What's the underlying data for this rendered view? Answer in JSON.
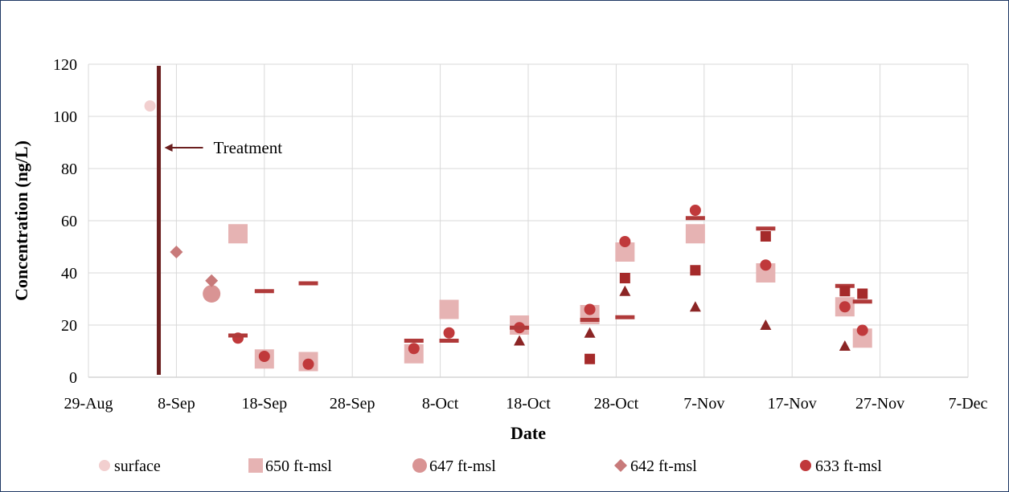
{
  "chart_data": {
    "type": "scatter",
    "title": "",
    "xlabel": "Date",
    "ylabel": "Concentration (ng/L)",
    "xlim": [
      "2023-08-29",
      "2023-12-07"
    ],
    "ylim": [
      0,
      120
    ],
    "yticks": [
      0,
      20,
      40,
      60,
      80,
      100,
      120
    ],
    "xticks": [
      "2023-08-29",
      "2023-09-08",
      "2023-09-18",
      "2023-09-28",
      "2023-10-08",
      "2023-10-18",
      "2023-10-28",
      "2023-11-07",
      "2023-11-17",
      "2023-11-27",
      "2023-12-07"
    ],
    "xtick_labels": [
      "29-Aug",
      "8-Sep",
      "18-Sep",
      "28-Sep",
      "8-Oct",
      "18-Oct",
      "28-Oct",
      "7-Nov",
      "17-Nov",
      "27-Nov",
      "7-Dec"
    ],
    "grid": true,
    "legend_position": "bottom",
    "legend": [
      "surface",
      "650 ft-msl",
      "647 ft-msl",
      "642 ft-msl",
      "633 ft-msl"
    ],
    "treatment": {
      "date": "2023-09-06",
      "label": "Treatment",
      "color": "#6b1f1f"
    },
    "series": [
      {
        "name": "surface",
        "marker": "circle",
        "color": "#f2cfcf",
        "points": [
          {
            "x": "2023-09-05",
            "y": 104
          }
        ]
      },
      {
        "name": "650 ft-msl",
        "marker": "square",
        "color": "#e6b3b3",
        "points": [
          {
            "x": "2023-09-15",
            "y": 55
          },
          {
            "x": "2023-09-18",
            "y": 7
          },
          {
            "x": "2023-09-23",
            "y": 6
          },
          {
            "x": "2023-10-05",
            "y": 9
          },
          {
            "x": "2023-10-09",
            "y": 26
          },
          {
            "x": "2023-10-17",
            "y": 20
          },
          {
            "x": "2023-10-25",
            "y": 24
          },
          {
            "x": "2023-10-29",
            "y": 48
          },
          {
            "x": "2023-11-06",
            "y": 55
          },
          {
            "x": "2023-11-14",
            "y": 40
          },
          {
            "x": "2023-11-23",
            "y": 27
          },
          {
            "x": "2023-11-25",
            "y": 15
          }
        ]
      },
      {
        "name": "647 ft-msl",
        "marker": "circle-large",
        "color": "#d99494",
        "points": [
          {
            "x": "2023-09-12",
            "y": 32
          }
        ]
      },
      {
        "name": "642 ft-msl",
        "marker": "diamond",
        "color": "#c87a7a",
        "points": [
          {
            "x": "2023-09-08",
            "y": 48
          },
          {
            "x": "2023-09-12",
            "y": 37
          }
        ]
      },
      {
        "name": "633 ft-msl",
        "marker": "circle",
        "color": "#c0393b",
        "points": [
          {
            "x": "2023-09-15",
            "y": 15
          },
          {
            "x": "2023-09-18",
            "y": 8
          },
          {
            "x": "2023-09-23",
            "y": 5
          },
          {
            "x": "2023-10-05",
            "y": 11
          },
          {
            "x": "2023-10-09",
            "y": 17
          },
          {
            "x": "2023-10-17",
            "y": 19
          },
          {
            "x": "2023-10-25",
            "y": 26
          },
          {
            "x": "2023-10-29",
            "y": 52
          },
          {
            "x": "2023-11-06",
            "y": 64
          },
          {
            "x": "2023-11-14",
            "y": 43
          },
          {
            "x": "2023-11-23",
            "y": 27
          },
          {
            "x": "2023-11-25",
            "y": 18
          }
        ]
      },
      {
        "name": "",
        "marker": "dash",
        "color": "#b03a3a",
        "points": [
          {
            "x": "2023-09-15",
            "y": 16
          },
          {
            "x": "2023-09-18",
            "y": 33
          },
          {
            "x": "2023-09-23",
            "y": 36
          },
          {
            "x": "2023-10-05",
            "y": 14
          },
          {
            "x": "2023-10-09",
            "y": 14
          },
          {
            "x": "2023-10-17",
            "y": 19
          },
          {
            "x": "2023-10-25",
            "y": 22
          },
          {
            "x": "2023-10-29",
            "y": 23
          },
          {
            "x": "2023-11-06",
            "y": 61
          },
          {
            "x": "2023-11-14",
            "y": 57
          },
          {
            "x": "2023-11-23",
            "y": 35
          },
          {
            "x": "2023-11-25",
            "y": 29
          }
        ]
      },
      {
        "name": "",
        "marker": "square-small",
        "color": "#a52a2a",
        "points": [
          {
            "x": "2023-10-25",
            "y": 7
          },
          {
            "x": "2023-10-29",
            "y": 38
          },
          {
            "x": "2023-11-06",
            "y": 41
          },
          {
            "x": "2023-11-14",
            "y": 54
          },
          {
            "x": "2023-11-23",
            "y": 33
          },
          {
            "x": "2023-11-25",
            "y": 32
          }
        ]
      },
      {
        "name": "",
        "marker": "triangle",
        "color": "#8b2525",
        "points": [
          {
            "x": "2023-10-17",
            "y": 14
          },
          {
            "x": "2023-10-25",
            "y": 17
          },
          {
            "x": "2023-10-29",
            "y": 33
          },
          {
            "x": "2023-11-06",
            "y": 27
          },
          {
            "x": "2023-11-14",
            "y": 20
          },
          {
            "x": "2023-11-23",
            "y": 12
          }
        ]
      }
    ]
  }
}
